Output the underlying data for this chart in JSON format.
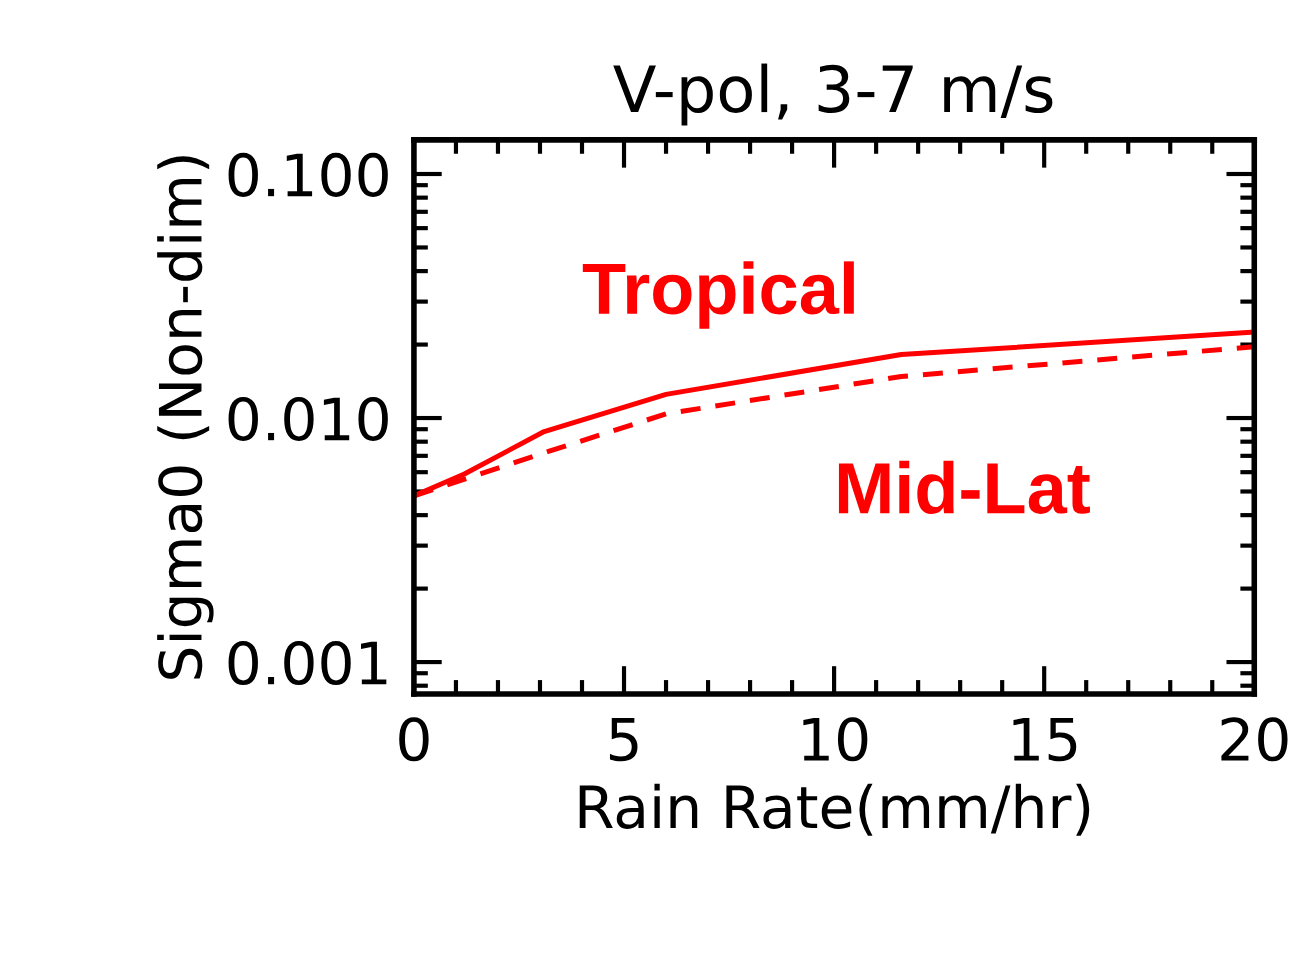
{
  "chart_data": {
    "type": "line",
    "title": "V-pol, 3-7 m/s",
    "xlabel": "Rain Rate(mm/hr)",
    "ylabel": "Sigma0 (Non-dim)",
    "log": "y",
    "xlim": [
      0,
      20
    ],
    "xticks": [
      0,
      5,
      10,
      15,
      20
    ],
    "ylim": [
      0.00074,
      0.138
    ],
    "yticks": [
      {
        "value": 0.1,
        "label": "0.100"
      },
      {
        "value": 0.01,
        "label": "0.010"
      },
      {
        "value": 0.001,
        "label": "0.001"
      }
    ],
    "grid": false,
    "legend": false,
    "marker": "none",
    "series": [
      {
        "name": "Tropical",
        "color": "#ff0000",
        "line_style": "solid",
        "x": [
          0,
          1.2,
          3.1,
          6.0,
          11.6,
          20
        ],
        "values": [
          0.0048,
          0.0059,
          0.0088,
          0.0125,
          0.0182,
          0.0225
        ]
      },
      {
        "name": "Mid-Lat",
        "color": "#ff0000",
        "line_style": "dashed",
        "x": [
          0,
          3.1,
          6.0,
          11.6,
          20
        ],
        "values": [
          0.0048,
          0.0072,
          0.0104,
          0.0148,
          0.0196
        ]
      }
    ]
  }
}
